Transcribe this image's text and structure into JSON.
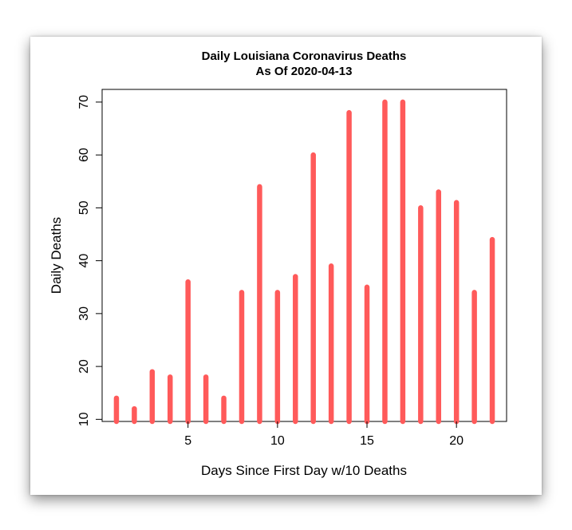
{
  "chart_data": {
    "type": "bar",
    "title": "Daily Louisiana Coronavirus Deaths",
    "subtitle": "As Of 2020-04-13",
    "xlabel": "Days Since First Day w/10 Deaths",
    "ylabel": "Daily Deaths",
    "x": [
      1,
      2,
      3,
      4,
      5,
      6,
      7,
      8,
      9,
      10,
      11,
      12,
      13,
      14,
      15,
      16,
      17,
      18,
      19,
      20,
      21,
      22
    ],
    "values": [
      14,
      12,
      19,
      18,
      36,
      18,
      14,
      34,
      54,
      34,
      37,
      60,
      39,
      68,
      35,
      70,
      70,
      50,
      53,
      51,
      34,
      44
    ],
    "xticks": [
      5,
      10,
      15,
      20
    ],
    "yticks": [
      10,
      20,
      30,
      40,
      50,
      60,
      70
    ],
    "xlim": [
      0.2,
      22.8
    ],
    "ylim": [
      9.6,
      72.4
    ],
    "grid": false,
    "bar_color": "#ff5a5a"
  }
}
